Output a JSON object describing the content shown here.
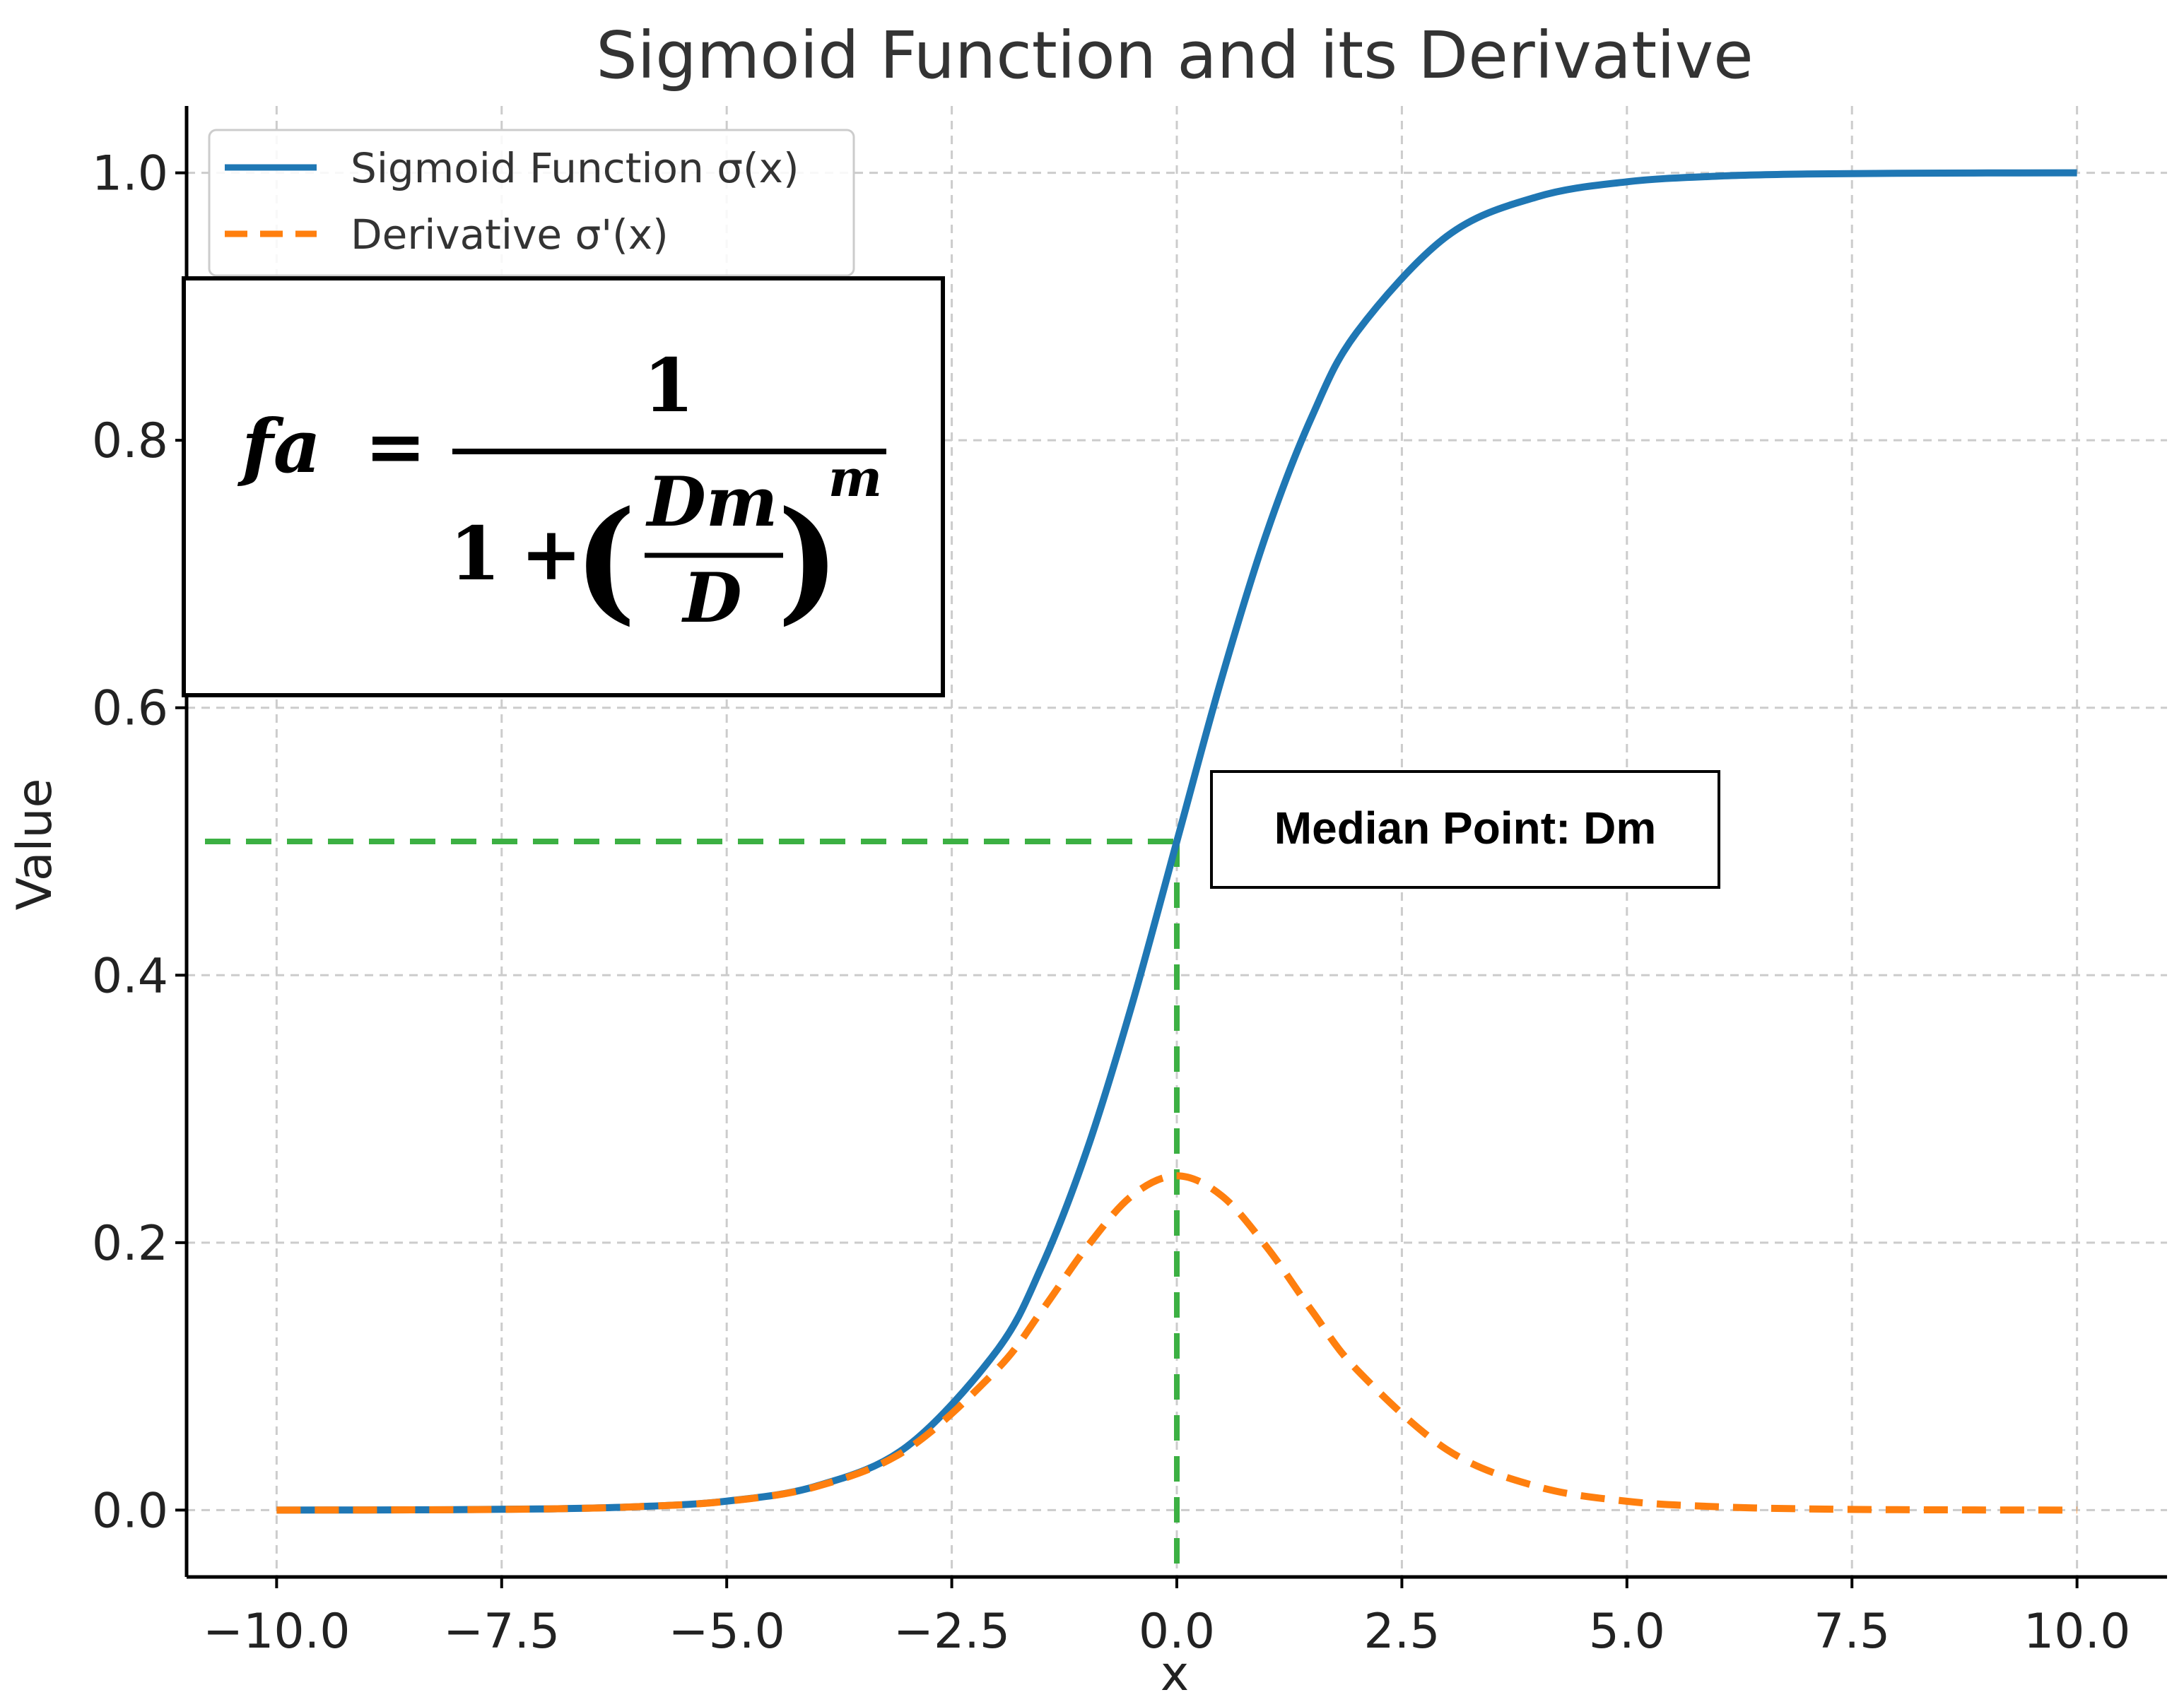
{
  "chart_data": {
    "type": "line",
    "title": "Sigmoid Function and its Derivative",
    "xlabel": "x",
    "ylabel": "Value",
    "xlim": [
      -11,
      11
    ],
    "ylim": [
      -0.05,
      1.05
    ],
    "x_ticks": [
      -10.0,
      -7.5,
      -5.0,
      -2.5,
      0.0,
      2.5,
      5.0,
      7.5,
      10.0
    ],
    "x_tick_labels": [
      "−10.0",
      "−7.5",
      "−5.0",
      "−2.5",
      "0.0",
      "2.5",
      "5.0",
      "7.5",
      "10.0"
    ],
    "y_ticks": [
      0.0,
      0.2,
      0.4,
      0.6,
      0.8,
      1.0
    ],
    "y_tick_labels": [
      "0.0",
      "0.2",
      "0.4",
      "0.6",
      "0.8",
      "1.0"
    ],
    "grid": true,
    "legend_position": "top-left",
    "x": [
      -10,
      -9,
      -8,
      -7,
      -6,
      -5,
      -4,
      -3,
      -2,
      -1.5,
      -1,
      -0.5,
      0,
      0.5,
      1,
      1.5,
      2,
      3,
      4,
      5,
      6,
      7,
      8,
      9,
      10
    ],
    "series": [
      {
        "name": "Sigmoid Function σ(x)",
        "color": "#1f77b4",
        "style": "solid",
        "values": [
          0.0,
          0.0001,
          0.0003,
          0.0009,
          0.0025,
          0.0067,
          0.018,
          0.0474,
          0.1192,
          0.1824,
          0.2689,
          0.3775,
          0.5,
          0.6225,
          0.7311,
          0.8176,
          0.8808,
          0.9526,
          0.982,
          0.9933,
          0.9975,
          0.9991,
          0.9997,
          0.9999,
          1.0
        ]
      },
      {
        "name": "Derivative σ'(x)",
        "color": "#ff7f0e",
        "style": "dashed",
        "values": [
          0.0,
          0.0001,
          0.0003,
          0.0009,
          0.0025,
          0.0066,
          0.0177,
          0.0452,
          0.105,
          0.1491,
          0.1966,
          0.235,
          0.25,
          0.235,
          0.1966,
          0.1491,
          0.105,
          0.0452,
          0.0177,
          0.0066,
          0.0025,
          0.0009,
          0.0003,
          0.0001,
          0.0
        ]
      }
    ],
    "median_guide": {
      "x": 0.0,
      "y": 0.5,
      "color": "#3cb043"
    },
    "annotations": {
      "median_label": "Median Point: Dm",
      "formula": {
        "lhs": "fa",
        "equals": "=",
        "numerator": "1",
        "denominator_one": "1",
        "plus": "+",
        "inner_numerator": "Dm",
        "inner_denominator": "D",
        "exponent": "m",
        "open_paren": "(",
        "close_paren": ")"
      }
    }
  }
}
